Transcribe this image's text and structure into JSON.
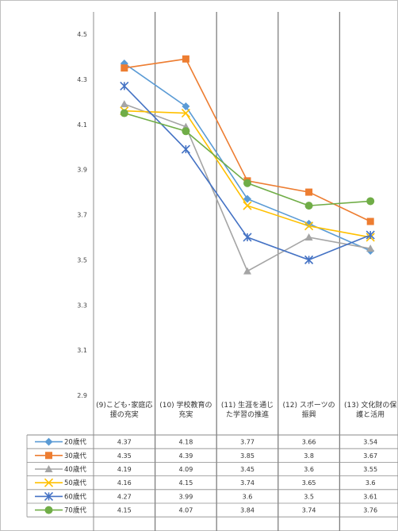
{
  "chart_data": {
    "type": "line",
    "title": "",
    "xlabel": "",
    "ylabel": "",
    "ylim": [
      2.9,
      4.5
    ],
    "yticks": [
      "2.9",
      "3.1",
      "3.3",
      "3.5",
      "3.7",
      "3.9",
      "4.1",
      "4.3",
      "4.5"
    ],
    "grid": "vertical",
    "categories": [
      "(9)こども･家庭応援の充実",
      "(10) 学校教育の充実",
      "(11) 生涯を通じた学習の推進",
      "(12) スポーツの振興",
      "(13) 文化財の保護と活用"
    ],
    "series": [
      {
        "name": "20歳代",
        "color": "#5b9bd5",
        "marker": "diamond",
        "values": [
          4.37,
          4.18,
          3.77,
          3.66,
          3.54
        ]
      },
      {
        "name": "30歳代",
        "color": "#ed7d31",
        "marker": "square",
        "values": [
          4.35,
          4.39,
          3.85,
          3.8,
          3.67
        ]
      },
      {
        "name": "40歳代",
        "color": "#a5a5a5",
        "marker": "triangle",
        "values": [
          4.19,
          4.09,
          3.45,
          3.6,
          3.55
        ]
      },
      {
        "name": "50歳代",
        "color": "#ffc000",
        "marker": "x",
        "values": [
          4.16,
          4.15,
          3.74,
          3.65,
          3.6
        ]
      },
      {
        "name": "60歳代",
        "color": "#4472c4",
        "marker": "star",
        "values": [
          4.27,
          3.99,
          3.6,
          3.5,
          3.61
        ]
      },
      {
        "name": "70歳代",
        "color": "#70ad47",
        "marker": "circle",
        "values": [
          4.15,
          4.07,
          3.84,
          3.74,
          3.76
        ]
      }
    ],
    "table_values": [
      [
        "4.37",
        "4.18",
        "3.77",
        "3.66",
        "3.54"
      ],
      [
        "4.35",
        "4.39",
        "3.85",
        "3.8",
        "3.67"
      ],
      [
        "4.19",
        "4.09",
        "3.45",
        "3.6",
        "3.55"
      ],
      [
        "4.16",
        "4.15",
        "3.74",
        "3.65",
        "3.6"
      ],
      [
        "4.27",
        "3.99",
        "3.6",
        "3.5",
        "3.61"
      ],
      [
        "4.15",
        "4.07",
        "3.84",
        "3.74",
        "3.76"
      ]
    ]
  }
}
